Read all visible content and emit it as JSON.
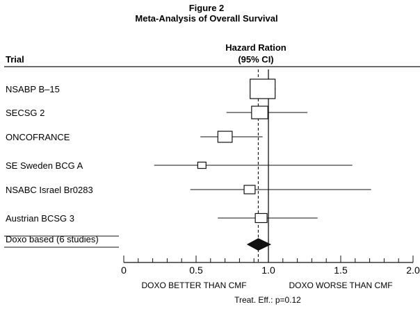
{
  "chart_data": {
    "type": "forest",
    "title": "Figure 2",
    "subtitle": "Meta-Analysis of Overall Survival",
    "column_trial": "Trial",
    "column_hr_line1": "Hazard Ration",
    "column_hr_line2": "(95% CI)",
    "xlim": [
      0,
      2.0
    ],
    "x_ticks": [
      "0",
      "0.5",
      "1.0",
      "1.5",
      "2.0"
    ],
    "x_tick_values": [
      0,
      0.5,
      1.0,
      1.5,
      2.0
    ],
    "reference_line": 1.0,
    "pooled_line": 0.93,
    "xlabel_left": "DOXO BETTER THAN CMF",
    "xlabel_right": "DOXO WORSE THAN CMF",
    "footnote": "Treat. Eff.: p=0.12",
    "studies": [
      {
        "name": "NSABP B–15",
        "hr": 0.96,
        "lo": 0.88,
        "hi": 1.05,
        "weight": 1.0
      },
      {
        "name": "SECSG 2",
        "hr": 0.94,
        "lo": 0.71,
        "hi": 1.27,
        "weight": 0.55
      },
      {
        "name": "ONCOFRANCE",
        "hr": 0.7,
        "lo": 0.53,
        "hi": 0.96,
        "weight": 0.45
      },
      {
        "name": "SE Sweden BCG A",
        "hr": 0.54,
        "lo": 0.21,
        "hi": 1.58,
        "weight": 0.14
      },
      {
        "name": "NSABC Israel Br0283",
        "hr": 0.87,
        "lo": 0.46,
        "hi": 1.71,
        "weight": 0.28
      },
      {
        "name": "Austrian BCSG 3",
        "hr": 0.95,
        "lo": 0.65,
        "hi": 1.34,
        "weight": 0.32
      }
    ],
    "pooled": {
      "name": "Doxo based (6 studies)",
      "hr": 0.93,
      "lo": 0.85,
      "hi": 1.02
    }
  }
}
